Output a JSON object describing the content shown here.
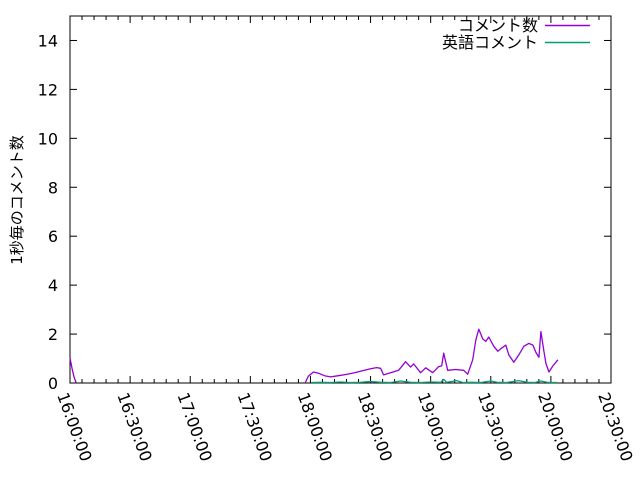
{
  "figure": {
    "background": "#ffffff",
    "axis_color": "#000000",
    "text_color": "#000000"
  },
  "legend": {
    "items": [
      {
        "label": "コメント数",
        "color": "#9400d3"
      },
      {
        "label": "英語コメント",
        "color": "#009e73"
      }
    ]
  },
  "chart_data": {
    "type": "line",
    "title": "",
    "xlabel": "",
    "ylabel": "1秒毎のコメント数",
    "xlim": [
      "16:00:00",
      "20:30:00"
    ],
    "ylim": [
      0,
      15
    ],
    "grid": false,
    "legend_position": "top-right-inside",
    "x_tick_labels": [
      "16:00:00",
      "16:30:00",
      "17:00:00",
      "17:30:00",
      "18:00:00",
      "18:30:00",
      "19:00:00",
      "19:30:00",
      "20:00:00",
      "20:30:00"
    ],
    "y_tick_labels": [
      "0",
      "2",
      "4",
      "6",
      "8",
      "10",
      "12",
      "14"
    ],
    "x_minor_tick_seconds": 360,
    "series": [
      {
        "name": "コメント数",
        "color": "#9400d3",
        "segments": [
          [
            [
              "16:00:00",
              1.02
            ],
            [
              "16:01:00",
              0.6
            ],
            [
              "16:02:00",
              0.25
            ],
            [
              "16:03:00",
              0.02
            ]
          ],
          [
            [
              "17:57:30",
              0.03
            ],
            [
              "17:59:00",
              0.28
            ],
            [
              "18:01:30",
              0.45
            ],
            [
              "18:04:00",
              0.4
            ],
            [
              "18:07:00",
              0.3
            ],
            [
              "18:10:00",
              0.25
            ],
            [
              "18:14:00",
              0.3
            ],
            [
              "18:18:00",
              0.35
            ],
            [
              "18:22:00",
              0.42
            ],
            [
              "18:26:00",
              0.5
            ],
            [
              "18:30:00",
              0.58
            ],
            [
              "18:33:00",
              0.63
            ],
            [
              "18:35:00",
              0.6
            ],
            [
              "18:36:30",
              0.33
            ],
            [
              "18:40:00",
              0.42
            ],
            [
              "18:44:00",
              0.52
            ],
            [
              "18:47:30",
              0.87
            ],
            [
              "18:50:00",
              0.65
            ],
            [
              "18:51:30",
              0.78
            ],
            [
              "18:55:00",
              0.42
            ],
            [
              "18:57:30",
              0.62
            ],
            [
              "19:01:00",
              0.42
            ],
            [
              "19:04:00",
              0.67
            ],
            [
              "19:05:30",
              0.7
            ],
            [
              "19:06:30",
              1.22
            ],
            [
              "19:08:30",
              0.52
            ],
            [
              "19:12:30",
              0.55
            ],
            [
              "19:16:30",
              0.52
            ],
            [
              "19:18:30",
              0.36
            ],
            [
              "19:21:00",
              0.95
            ],
            [
              "19:22:30",
              1.75
            ],
            [
              "19:24:00",
              2.2
            ],
            [
              "19:26:00",
              1.8
            ],
            [
              "19:27:30",
              1.7
            ],
            [
              "19:29:00",
              1.88
            ],
            [
              "19:31:30",
              1.5
            ],
            [
              "19:33:30",
              1.3
            ],
            [
              "19:35:00",
              1.4
            ],
            [
              "19:37:30",
              1.55
            ],
            [
              "19:39:00",
              1.15
            ],
            [
              "19:41:30",
              0.85
            ],
            [
              "19:44:00",
              1.15
            ],
            [
              "19:46:30",
              1.5
            ],
            [
              "19:49:00",
              1.62
            ],
            [
              "19:51:00",
              1.55
            ],
            [
              "19:52:30",
              1.25
            ],
            [
              "19:54:00",
              1.05
            ],
            [
              "19:55:00",
              2.1
            ],
            [
              "19:56:30",
              1.3
            ],
            [
              "19:57:30",
              0.8
            ],
            [
              "19:59:00",
              0.45
            ],
            [
              "20:01:00",
              0.7
            ],
            [
              "20:03:30",
              0.95
            ]
          ]
        ]
      },
      {
        "name": "英語コメント",
        "color": "#009e73",
        "segments": [
          [
            [
              "18:00:30",
              0.02
            ],
            [
              "18:05:00",
              0.03
            ],
            [
              "18:10:00",
              0.02
            ],
            [
              "18:15:00",
              0.04
            ],
            [
              "18:20:00",
              0.02
            ],
            [
              "18:25:00",
              0.03
            ],
            [
              "18:30:00",
              0.06
            ],
            [
              "18:35:00",
              0.03
            ],
            [
              "18:40:00",
              0.02
            ],
            [
              "18:45:00",
              0.08
            ],
            [
              "18:50:00",
              0.03
            ],
            [
              "18:55:00",
              0.02
            ],
            [
              "19:00:00",
              0.04
            ],
            [
              "19:05:00",
              0.03
            ],
            [
              "19:06:30",
              0.15
            ],
            [
              "19:08:00",
              0.03
            ],
            [
              "19:13:00",
              0.1
            ],
            [
              "19:16:00",
              0.02
            ],
            [
              "19:20:00",
              0.03
            ],
            [
              "19:25:00",
              0.02
            ],
            [
              "19:30:00",
              0.08
            ],
            [
              "19:33:00",
              0.03
            ],
            [
              "19:38:00",
              0.02
            ],
            [
              "19:44:00",
              0.1
            ],
            [
              "19:48:00",
              0.03
            ],
            [
              "19:52:00",
              0.02
            ],
            [
              "19:55:00",
              0.08
            ],
            [
              "19:58:00",
              0.03
            ],
            [
              "20:01:00",
              0.02
            ],
            [
              "20:03:00",
              0.02
            ]
          ]
        ]
      }
    ]
  }
}
